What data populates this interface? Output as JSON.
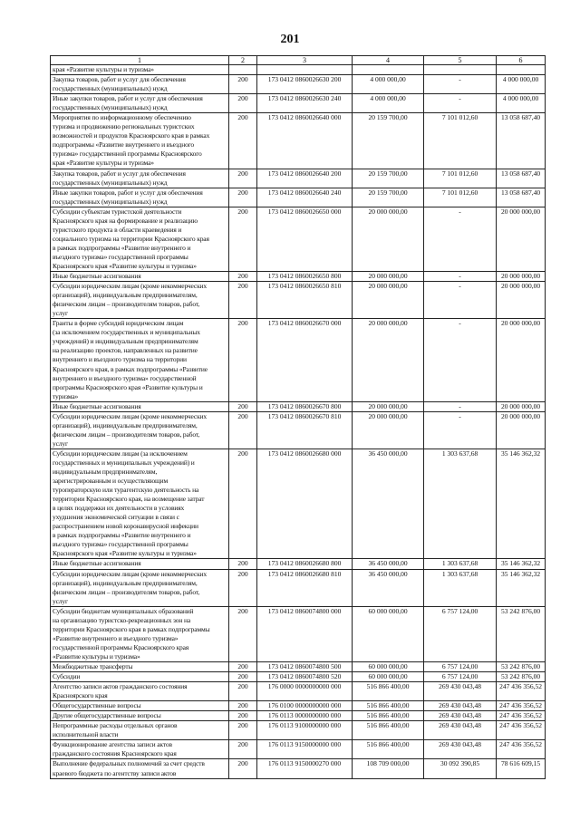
{
  "page_number": "201",
  "table": {
    "headers": [
      "1",
      "2",
      "3",
      "4",
      "5",
      "6"
    ],
    "rows": [
      {
        "name": "края «Развитие культуры и туризма»",
        "c2": "",
        "c3": "",
        "c4": "",
        "c5": "",
        "c6": ""
      },
      {
        "name": "Закупка товаров, работ и услуг для обеспечения\nгосударственных (муниципальных) нужд",
        "c2": "200",
        "c3": "173 0412 0860026630 200",
        "c4": "4 000 000,00",
        "c5": "-",
        "c6": "4 000 000,00"
      },
      {
        "name": "Иные закупки товаров, работ и услуг для обеспечения\nгосударственных (муниципальных) нужд",
        "c2": "200",
        "c3": "173 0412 0860026630 240",
        "c4": "4 000 000,00",
        "c5": "-",
        "c6": "4 000 000,00"
      },
      {
        "name": "Мероприятия по информационному обеспечению\nтуризма и продвижению региональных туристских\nвозможностей и продуктов Красноярского края в рамках\nподпрограммы «Развитие внутреннего и въездного\nтуризма» государственной программы Красноярского\nкрая «Развитие культуры и туризма»",
        "c2": "200",
        "c3": "173 0412 0860026640 000",
        "c4": "20 159 700,00",
        "c5": "7 101 012,60",
        "c6": "13 058 687,40"
      },
      {
        "name": "Закупка товаров, работ и услуг для обеспечения\nгосударственных (муниципальных) нужд",
        "c2": "200",
        "c3": "173 0412 0860026640 200",
        "c4": "20 159 700,00",
        "c5": "7 101 012,60",
        "c6": "13 058 687,40"
      },
      {
        "name": "Иные закупки товаров, работ и услуг для обеспечения\nгосударственных (муниципальных) нужд",
        "c2": "200",
        "c3": "173 0412 0860026640 240",
        "c4": "20 159 700,00",
        "c5": "7 101 012,60",
        "c6": "13 058 687,40"
      },
      {
        "name": "Субсидии субъектам туристской деятельности\nКрасноярского края на формирование и реализацию\nтуристского продукта в области краеведения и\nсоциального туризма на территории Красноярского края\nв рамках подпрограммы «Развитие внутреннего и\nвъездного туризма» государственной программы\nКрасноярского края «Развитие культуры и туризма»",
        "c2": "200",
        "c3": "173 0412 0860026650 000",
        "c4": "20 000 000,00",
        "c5": "-",
        "c6": "20 000 000,00"
      },
      {
        "name": "Иные бюджетные ассигнования",
        "c2": "200",
        "c3": "173 0412 0860026650 800",
        "c4": "20 000 000,00",
        "c5": "-",
        "c6": "20 000 000,00"
      },
      {
        "name": "Субсидии юридическим лицам (кроме некоммерческих\nорганизаций), индивидуальным предпринимателям,\nфизическим лицам – производителям товаров, работ,\nуслуг",
        "c2": "200",
        "c3": "173 0412 0860026650 810",
        "c4": "20 000 000,00",
        "c5": "-",
        "c6": "20 000 000,00"
      },
      {
        "name": "Гранты в форме субсидий юридическим лицам\n(за исключением государственных и муниципальных\nучреждений) и индивидуальным предпринимателям\nна реализацию проектов, направленных на развитие\nвнутреннего и въездного туризма на территории\nКрасноярского края, в рамках подпрограммы «Развитие\nвнутреннего и въездного туризма» государственной\nпрограммы Красноярского края «Развитие культуры и\nтуризма»",
        "c2": "200",
        "c3": "173 0412 0860026670 000",
        "c4": "20 000 000,00",
        "c5": "-",
        "c6": "20 000 000,00"
      },
      {
        "name": "Иные бюджетные ассигнования",
        "c2": "200",
        "c3": "173 0412 0860026670 800",
        "c4": "20 000 000,00",
        "c5": "-",
        "c6": "20 000 000,00"
      },
      {
        "name": "Субсидии юридическим лицам (кроме некоммерческих\nорганизаций), индивидуальным предпринимателям,\nфизическим лицам – производителям товаров, работ,\nуслуг",
        "c2": "200",
        "c3": "173 0412 0860026670 810",
        "c4": "20 000 000,00",
        "c5": "-",
        "c6": "20 000 000,00"
      },
      {
        "name": "Субсидии юридическим лицам (за исключением\nгосударственных и муниципальных учреждений) и\nиндивидуальным предпринимателям,\nзарегистрированным и осуществляющим\nтуроператорскую или турагентскую деятельность на\nтерритории Красноярского края, на возмещение затрат\nв целях поддержки их деятельности в условиях\nухудшения экономической ситуации в связи с\nраспространением новой коронавирусной инфекции\nв рамках подпрограммы «Развитие внутреннего и\nвъездного туризма» государственной программы\nКрасноярского края «Развитие культуры и туризма»",
        "c2": "200",
        "c3": "173 0412 0860026680 000",
        "c4": "36 450 000,00",
        "c5": "1 303 637,68",
        "c6": "35 146 362,32"
      },
      {
        "name": "Иные бюджетные ассигнования",
        "c2": "200",
        "c3": "173 0412 0860026680 800",
        "c4": "36 450 000,00",
        "c5": "1 303 637,68",
        "c6": "35 146 362,32"
      },
      {
        "name": "Субсидии юридическим лицам (кроме некоммерческих\nорганизаций), индивидуальным предпринимателям,\nфизическим лицам – производителям товаров, работ,\nуслуг",
        "c2": "200",
        "c3": "173 0412 0860026680 810",
        "c4": "36 450 000,00",
        "c5": "1 303 637,68",
        "c6": "35 146 362,32"
      },
      {
        "name": "Субсидии бюджетам муниципальных образований\nна организацию туристско-рекреационных зон на\nтерритории Красноярского края в рамках подпрограммы\n«Развитие внутреннего и въездного туризма»\nгосударственной программы Красноярского края\n«Развитие культуры и туризма»",
        "c2": "200",
        "c3": "173 0412 0860074800 000",
        "c4": "60 000 000,00",
        "c5": "6 757 124,00",
        "c6": "53 242 876,00"
      },
      {
        "name": "Межбюджетные трансферты",
        "c2": "200",
        "c3": "173 0412 0860074800 500",
        "c4": "60 000 000,00",
        "c5": "6 757 124,00",
        "c6": "53 242 876,00"
      },
      {
        "name": "Субсидии",
        "c2": "200",
        "c3": "173 0412 0860074800 520",
        "c4": "60 000 000,00",
        "c5": "6 757 124,00",
        "c6": "53 242 876,00"
      },
      {
        "name": "Агентство записи актов гражданского состояния\nКрасноярского края",
        "c2": "200",
        "c3": "176 0000 0000000000 000",
        "c4": "516 866 400,00",
        "c5": "269 430 043,48",
        "c6": "247 436 356,52"
      },
      {
        "name": "Общегосударственные вопросы",
        "c2": "200",
        "c3": "176 0100 0000000000 000",
        "c4": "516 866 400,00",
        "c5": "269 430 043,48",
        "c6": "247 436 356,52"
      },
      {
        "name": "Другие общегосударственные вопросы",
        "c2": "200",
        "c3": "176 0113 0000000000 000",
        "c4": "516 866 400,00",
        "c5": "269 430 043,48",
        "c6": "247 436 356,52"
      },
      {
        "name": "Непрограммные расходы отдельных органов\nисполнительной власти",
        "c2": "200",
        "c3": "176 0113 9100000000 000",
        "c4": "516 866 400,00",
        "c5": "269 430 043,48",
        "c6": "247 436 356,52"
      },
      {
        "name": "Функционирование агентства записи актов\nгражданского состояния Красноярского края",
        "c2": "200",
        "c3": "176 0113 9150000000 000",
        "c4": "516 866 400,00",
        "c5": "269 430 043,48",
        "c6": "247 436 356,52"
      },
      {
        "name": "Выполнение федеральных полномочий за счет средств\nкраевого бюджета по агентству записи актов",
        "c2": "200",
        "c3": "176 0113 9150000270 000",
        "c4": "108 709 000,00",
        "c5": "30 092 390,85",
        "c6": "78 616 609,15"
      }
    ]
  }
}
